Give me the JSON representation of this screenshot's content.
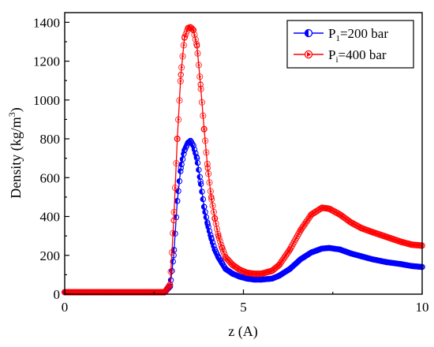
{
  "chart_data": {
    "type": "scatter",
    "xlabel": "z (A)",
    "ylabel_main": "Density (kg/m",
    "ylabel_sup": "3",
    "ylabel_close": ")",
    "xlim": [
      0,
      10
    ],
    "ylim": [
      0,
      1450
    ],
    "x_ticks": [
      0,
      5,
      10
    ],
    "y_ticks": [
      0,
      200,
      400,
      600,
      800,
      1000,
      1200,
      1400
    ],
    "grid": false,
    "legend_position": "top-right",
    "series": [
      {
        "legend_main": "P",
        "legend_sub": "1",
        "legend_rest": "=200 bar",
        "color": "#0000ff",
        "marker": "circle-half-left",
        "x": [
          0,
          1,
          2,
          2.8,
          2.95,
          3.05,
          3.15,
          3.25,
          3.35,
          3.45,
          3.52,
          3.6,
          3.7,
          3.8,
          3.9,
          4.0,
          4.1,
          4.2,
          4.3,
          4.4,
          4.5,
          4.7,
          4.9,
          5.1,
          5.3,
          5.5,
          5.8,
          6.0,
          6.3,
          6.6,
          6.9,
          7.2,
          7.4,
          7.7,
          8.0,
          8.3,
          8.6,
          9.0,
          9.4,
          9.7,
          10.0
        ],
        "y": [
          10,
          10,
          10,
          10,
          40,
          200,
          480,
          650,
          740,
          780,
          790,
          765,
          700,
          580,
          450,
          360,
          290,
          230,
          190,
          160,
          130,
          105,
          90,
          80,
          75,
          75,
          80,
          95,
          130,
          180,
          215,
          235,
          238,
          230,
          210,
          195,
          180,
          165,
          155,
          145,
          140
        ]
      },
      {
        "legend_main": "P",
        "legend_sub": "i",
        "legend_rest": "=400 bar",
        "color": "#ff0000",
        "marker": "triangle-right",
        "x": [
          0,
          1,
          2,
          2.8,
          2.95,
          3.05,
          3.15,
          3.25,
          3.35,
          3.45,
          3.52,
          3.6,
          3.7,
          3.8,
          3.9,
          4.0,
          4.1,
          4.2,
          4.3,
          4.4,
          4.5,
          4.7,
          4.9,
          5.1,
          5.3,
          5.5,
          5.8,
          6.0,
          6.3,
          6.6,
          6.9,
          7.2,
          7.4,
          7.7,
          8.0,
          8.3,
          8.6,
          9.0,
          9.4,
          9.7,
          10.0
        ],
        "y": [
          10,
          10,
          10,
          10,
          50,
          380,
          800,
          1130,
          1320,
          1370,
          1375,
          1360,
          1280,
          1080,
          850,
          650,
          500,
          390,
          300,
          240,
          190,
          150,
          125,
          110,
          105,
          105,
          120,
          150,
          230,
          330,
          410,
          445,
          440,
          410,
          370,
          340,
          320,
          295,
          270,
          255,
          250
        ]
      }
    ]
  }
}
